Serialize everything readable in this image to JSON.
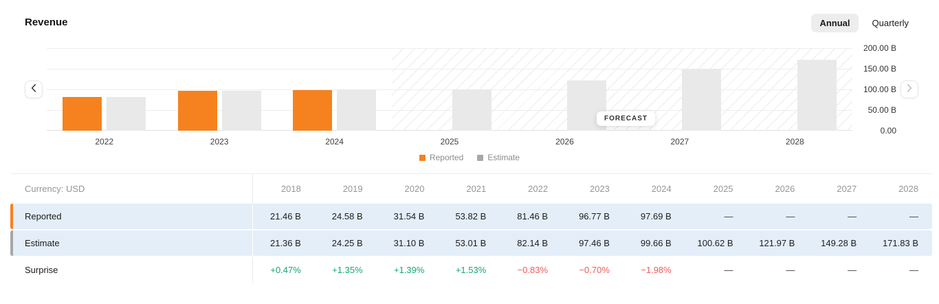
{
  "header": {
    "title": "Revenue",
    "toggles": [
      {
        "label": "Annual",
        "active": true
      },
      {
        "label": "Quarterly",
        "active": false
      }
    ]
  },
  "chart": {
    "y_axis_ticks": [
      "200.00 B",
      "150.00 B",
      "100.00 B",
      "50.00 B",
      "0.00"
    ],
    "x_axis_years": [
      "2022",
      "2023",
      "2024",
      "2025",
      "2026",
      "2027",
      "2028"
    ],
    "forecast_label": "FORECAST",
    "forecast_starts_at": "2025",
    "legend": [
      {
        "label": "Reported",
        "color": "#F5821F"
      },
      {
        "label": "Estimate",
        "color": "#A8A8A8"
      }
    ],
    "colors": {
      "reported_bar": "#F5821F",
      "estimate_bar": "#E9E9E9"
    }
  },
  "chart_data": {
    "type": "bar",
    "title": "Revenue",
    "x": [
      "2018",
      "2019",
      "2020",
      "2021",
      "2022",
      "2023",
      "2024",
      "2025",
      "2026",
      "2027",
      "2028"
    ],
    "visible_years": [
      "2022",
      "2023",
      "2024",
      "2025",
      "2026",
      "2027",
      "2028"
    ],
    "unit": "B USD",
    "series": [
      {
        "name": "Reported",
        "color": "#F5821F",
        "values": [
          21.46,
          24.58,
          31.54,
          53.82,
          81.46,
          96.77,
          97.69,
          null,
          null,
          null,
          null
        ]
      },
      {
        "name": "Estimate",
        "color": "#E9E9E9",
        "values": [
          21.36,
          24.25,
          31.1,
          53.01,
          82.14,
          97.46,
          99.66,
          100.62,
          121.97,
          149.28,
          171.83
        ]
      }
    ],
    "surprise_pct": [
      "+0.47%",
      "+1.35%",
      "+1.39%",
      "+1.53%",
      "−0.83%",
      "−0.70%",
      "−1.98%",
      null,
      null,
      null,
      null
    ],
    "ylim": [
      0,
      200
    ],
    "y_ticks_b": [
      200,
      150,
      100,
      50,
      0
    ],
    "forecast_from": "2025",
    "grid": true,
    "legend_position": "bottom"
  },
  "table": {
    "currency_label": "Currency: USD",
    "years": [
      "2018",
      "2019",
      "2020",
      "2021",
      "2022",
      "2023",
      "2024",
      "2025",
      "2026",
      "2027",
      "2028"
    ],
    "rows": [
      {
        "label": "Reported",
        "accent": "#F5821F",
        "highlight": true,
        "values": [
          "21.46 B",
          "24.58 B",
          "31.54 B",
          "53.82 B",
          "81.46 B",
          "96.77 B",
          "97.69 B",
          "—",
          "—",
          "—",
          "—"
        ]
      },
      {
        "label": "Estimate",
        "accent": "#A6A6A6",
        "highlight": true,
        "values": [
          "21.36 B",
          "24.25 B",
          "31.10 B",
          "53.01 B",
          "82.14 B",
          "97.46 B",
          "99.66 B",
          "100.62 B",
          "121.97 B",
          "149.28 B",
          "171.83 B"
        ]
      },
      {
        "label": "Surprise",
        "highlight": false,
        "values": [
          "+0.47%",
          "+1.35%",
          "+1.39%",
          "+1.53%",
          "−0.83%",
          "−0.70%",
          "−1.98%",
          "—",
          "—",
          "—",
          "—"
        ]
      }
    ]
  }
}
